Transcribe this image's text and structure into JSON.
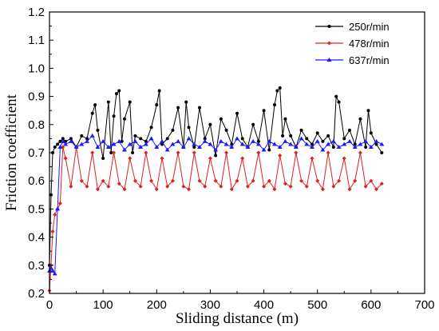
{
  "chart_data": {
    "type": "line",
    "xlabel": "Sliding distance (m)",
    "ylabel": "Friction coefficient",
    "xlim": [
      0,
      700
    ],
    "ylim": [
      0.2,
      1.2
    ],
    "xticks": [
      0,
      100,
      200,
      300,
      400,
      500,
      600,
      700
    ],
    "yticks": [
      0.2,
      0.3,
      0.4,
      0.5,
      0.6,
      0.7,
      0.8,
      0.9,
      1.0,
      1.1,
      1.2
    ],
    "xtick_labels": [
      "0",
      "100",
      "200",
      "300",
      "400",
      "500",
      "600",
      "700"
    ],
    "ytick_labels": [
      "0.2",
      "0.3",
      "0.4",
      "0.5",
      "0.6",
      "0.7",
      "0.8",
      "0.9",
      "1.0",
      "1.1",
      "1.2"
    ],
    "grid": false,
    "legend_position": "top-right",
    "series": [
      {
        "name": "250r/min",
        "color": "#000000",
        "marker": "circle",
        "x": [
          0,
          3,
          6,
          10,
          15,
          20,
          25,
          30,
          40,
          50,
          60,
          70,
          80,
          85,
          90,
          100,
          110,
          115,
          120,
          125,
          130,
          135,
          140,
          150,
          155,
          160,
          170,
          180,
          190,
          200,
          205,
          210,
          220,
          230,
          240,
          250,
          255,
          260,
          270,
          280,
          290,
          300,
          310,
          320,
          330,
          340,
          350,
          360,
          370,
          380,
          390,
          400,
          410,
          420,
          425,
          430,
          435,
          440,
          450,
          460,
          470,
          480,
          490,
          500,
          510,
          520,
          530,
          535,
          540,
          550,
          560,
          570,
          580,
          590,
          595,
          600,
          610,
          620
        ],
        "y": [
          0.3,
          0.55,
          0.7,
          0.72,
          0.73,
          0.74,
          0.75,
          0.74,
          0.75,
          0.72,
          0.76,
          0.75,
          0.84,
          0.87,
          0.78,
          0.68,
          0.88,
          0.7,
          0.83,
          0.91,
          0.92,
          0.74,
          0.82,
          0.88,
          0.7,
          0.76,
          0.75,
          0.74,
          0.79,
          0.87,
          0.92,
          0.73,
          0.75,
          0.78,
          0.86,
          0.72,
          0.88,
          0.79,
          0.72,
          0.86,
          0.75,
          0.8,
          0.69,
          0.82,
          0.78,
          0.73,
          0.84,
          0.75,
          0.72,
          0.8,
          0.74,
          0.85,
          0.71,
          0.87,
          0.92,
          0.93,
          0.76,
          0.82,
          0.76,
          0.72,
          0.78,
          0.75,
          0.73,
          0.77,
          0.74,
          0.76,
          0.72,
          0.9,
          0.88,
          0.75,
          0.78,
          0.73,
          0.82,
          0.72,
          0.85,
          0.77,
          0.73,
          0.7
        ]
      },
      {
        "name": "478r/min",
        "color": "#e02020",
        "marker": "diamond",
        "x": [
          0,
          3,
          6,
          10,
          15,
          20,
          25,
          30,
          40,
          50,
          60,
          70,
          80,
          90,
          100,
          110,
          120,
          130,
          140,
          150,
          160,
          170,
          180,
          190,
          200,
          210,
          220,
          230,
          240,
          250,
          260,
          270,
          280,
          290,
          300,
          310,
          320,
          330,
          340,
          350,
          360,
          370,
          380,
          390,
          400,
          410,
          420,
          430,
          440,
          450,
          460,
          470,
          480,
          490,
          500,
          510,
          520,
          530,
          540,
          550,
          560,
          570,
          580,
          590,
          600,
          610,
          620
        ],
        "y": [
          0.21,
          0.3,
          0.42,
          0.48,
          0.5,
          0.52,
          0.72,
          0.68,
          0.58,
          0.72,
          0.6,
          0.58,
          0.7,
          0.57,
          0.6,
          0.58,
          0.7,
          0.59,
          0.57,
          0.68,
          0.6,
          0.58,
          0.7,
          0.6,
          0.57,
          0.68,
          0.58,
          0.6,
          0.7,
          0.58,
          0.57,
          0.7,
          0.6,
          0.58,
          0.68,
          0.6,
          0.58,
          0.7,
          0.57,
          0.6,
          0.68,
          0.58,
          0.6,
          0.7,
          0.58,
          0.6,
          0.57,
          0.69,
          0.59,
          0.58,
          0.7,
          0.6,
          0.58,
          0.68,
          0.6,
          0.57,
          0.7,
          0.58,
          0.6,
          0.68,
          0.57,
          0.6,
          0.7,
          0.58,
          0.6,
          0.57,
          0.59
        ]
      },
      {
        "name": "637r/min",
        "color": "#1a1aff",
        "marker": "triangle",
        "x": [
          0,
          3,
          6,
          10,
          15,
          20,
          25,
          30,
          40,
          50,
          60,
          70,
          80,
          90,
          100,
          110,
          120,
          130,
          140,
          150,
          160,
          170,
          180,
          190,
          200,
          210,
          220,
          230,
          240,
          250,
          260,
          270,
          280,
          290,
          300,
          310,
          320,
          330,
          340,
          350,
          360,
          370,
          380,
          390,
          400,
          410,
          420,
          430,
          440,
          450,
          460,
          470,
          480,
          490,
          500,
          510,
          520,
          530,
          540,
          550,
          560,
          570,
          580,
          590,
          600,
          610,
          620
        ],
        "y": [
          0.28,
          0.29,
          0.28,
          0.27,
          0.5,
          0.72,
          0.74,
          0.73,
          0.74,
          0.72,
          0.73,
          0.74,
          0.76,
          0.72,
          0.74,
          0.72,
          0.73,
          0.74,
          0.71,
          0.73,
          0.74,
          0.72,
          0.73,
          0.75,
          0.72,
          0.74,
          0.71,
          0.73,
          0.74,
          0.72,
          0.75,
          0.73,
          0.72,
          0.74,
          0.73,
          0.71,
          0.74,
          0.73,
          0.72,
          0.75,
          0.73,
          0.72,
          0.74,
          0.73,
          0.71,
          0.74,
          0.73,
          0.72,
          0.74,
          0.73,
          0.72,
          0.75,
          0.73,
          0.72,
          0.74,
          0.71,
          0.73,
          0.74,
          0.72,
          0.73,
          0.74,
          0.72,
          0.73,
          0.74,
          0.72,
          0.74,
          0.73
        ]
      }
    ]
  }
}
